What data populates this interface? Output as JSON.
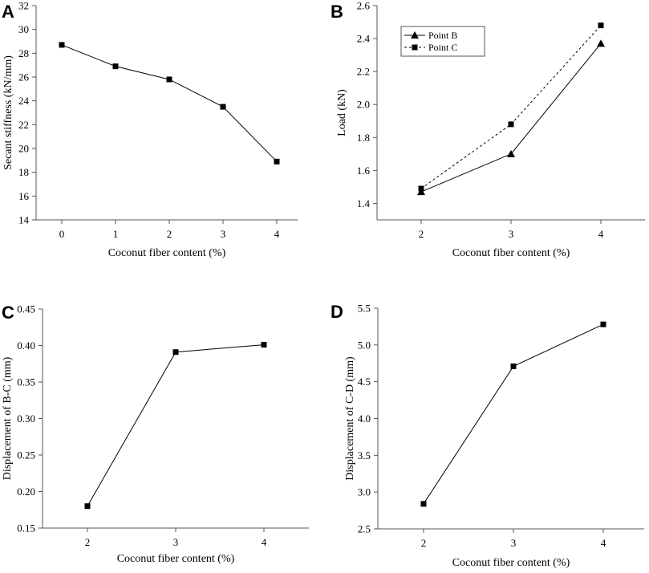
{
  "chart_data": [
    {
      "panel": "A",
      "type": "line",
      "xlabel": "Coconut fiber content (%)",
      "ylabel": "Secant stiffness (kN/mm)",
      "categories": [
        "0",
        "1",
        "2",
        "3",
        "4"
      ],
      "ylim": [
        14,
        32
      ],
      "yticks": [
        "14",
        "16",
        "18",
        "20",
        "22",
        "24",
        "26",
        "28",
        "30",
        "32"
      ],
      "series": [
        {
          "name": "Secant stiffness",
          "marker": "square",
          "dash": "solid",
          "values": [
            28.7,
            26.9,
            25.8,
            23.5,
            18.9
          ]
        }
      ]
    },
    {
      "panel": "B",
      "type": "line",
      "xlabel": "Coconut fiber content (%)",
      "ylabel": "Load (kN)",
      "categories": [
        "2",
        "3",
        "4"
      ],
      "ylim": [
        1.3,
        2.6
      ],
      "yticks": [
        "1.4",
        "1.6",
        "1.8",
        "2.0",
        "2.2",
        "2.4",
        "2.6"
      ],
      "legend": "top-left",
      "series": [
        {
          "name": "Point B",
          "marker": "triangle",
          "dash": "solid",
          "values": [
            1.47,
            1.7,
            2.37
          ]
        },
        {
          "name": "Point C",
          "marker": "square",
          "dash": "dashed",
          "values": [
            1.49,
            1.88,
            2.48
          ]
        }
      ]
    },
    {
      "panel": "C",
      "type": "line",
      "xlabel": "Coconut fiber content (%)",
      "ylabel": "Displacement of B-C (mm)",
      "categories": [
        "2",
        "3",
        "4"
      ],
      "ylim": [
        0.15,
        0.45
      ],
      "yticks": [
        "0.15",
        "0.20",
        "0.25",
        "0.30",
        "0.35",
        "0.40",
        "0.45"
      ],
      "series": [
        {
          "name": "Displacement of B-C",
          "marker": "square",
          "dash": "solid",
          "values": [
            0.18,
            0.391,
            0.401
          ]
        }
      ]
    },
    {
      "panel": "D",
      "type": "line",
      "xlabel": "Coconut fiber content (%)",
      "ylabel": "Displacement of C-D (mm)",
      "categories": [
        "2",
        "3",
        "4"
      ],
      "ylim": [
        2.5,
        5.5
      ],
      "yticks": [
        "2.5",
        "3.0",
        "3.5",
        "4.0",
        "4.5",
        "5.0",
        "5.5"
      ],
      "series": [
        {
          "name": "Displacement of C-D",
          "marker": "square",
          "dash": "solid",
          "values": [
            2.84,
            4.71,
            5.28
          ]
        }
      ]
    }
  ]
}
